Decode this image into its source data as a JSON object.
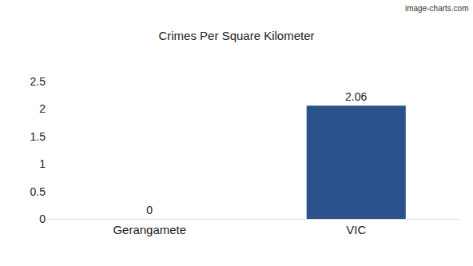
{
  "chart_data": {
    "type": "bar",
    "title": "Crimes Per Square Kilometer",
    "categories": [
      "Gerangamete",
      "VIC"
    ],
    "values": [
      0,
      2.06
    ],
    "color": "#2a5189",
    "ylim": [
      0,
      2.5
    ],
    "yticks": [
      0,
      0.5,
      1,
      1.5,
      2,
      2.5
    ],
    "grid": false,
    "data_labels": true,
    "annotations": [
      "image-charts.com"
    ]
  }
}
